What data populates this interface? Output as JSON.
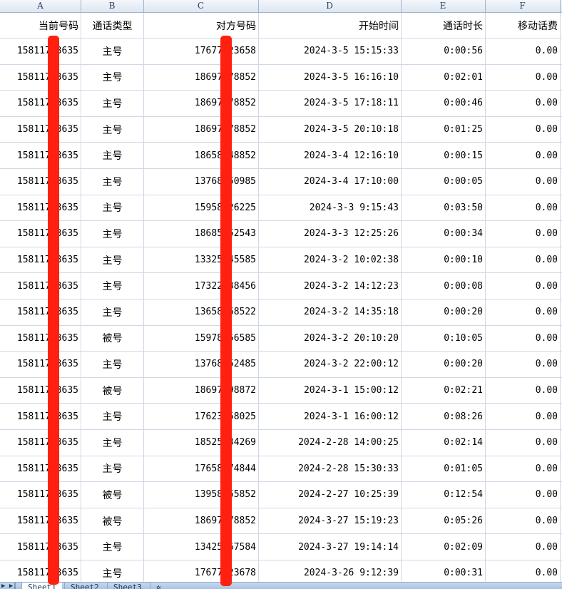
{
  "columns": [
    "A",
    "B",
    "C",
    "D",
    "E",
    "F"
  ],
  "headers": [
    "当前号码",
    "通话类型",
    "对方号码",
    "开始时间",
    "通话时长",
    "移动话费"
  ],
  "rows": [
    [
      "15811753635",
      "主号",
      "17677123658",
      "2024-3-5 15:15:33",
      "0:00:56",
      "0.00"
    ],
    [
      "15811753635",
      "主号",
      "18697378852",
      "2024-3-5 16:16:10",
      "0:02:01",
      "0.00"
    ],
    [
      "15811753635",
      "主号",
      "18697378852",
      "2024-3-5 17:18:11",
      "0:00:46",
      "0.00"
    ],
    [
      "15811753635",
      "主号",
      "18697378852",
      "2024-3-5 20:10:18",
      "0:01:25",
      "0.00"
    ],
    [
      "15811753635",
      "主号",
      "18658548852",
      "2024-3-4 12:16:10",
      "0:00:15",
      "0.00"
    ],
    [
      "15811753635",
      "主号",
      "13768250985",
      "2024-3-4 17:10:00",
      "0:00:05",
      "0.00"
    ],
    [
      "15811753635",
      "主号",
      "15958426225",
      "2024-3-3 9:15:43",
      "0:03:50",
      "0.00"
    ],
    [
      "15811753635",
      "主号",
      "18685552543",
      "2024-3-3 12:25:26",
      "0:00:34",
      "0.00"
    ],
    [
      "15811753635",
      "主号",
      "13325545585",
      "2024-3-2 10:02:38",
      "0:00:10",
      "0.00"
    ],
    [
      "15811753635",
      "主号",
      "17322538456",
      "2024-3-2 14:12:23",
      "0:00:08",
      "0.00"
    ],
    [
      "15811753635",
      "主号",
      "13658568522",
      "2024-3-2 14:35:18",
      "0:00:20",
      "0.00"
    ],
    [
      "15811753635",
      "被号",
      "15978156585",
      "2024-3-2 20:10:20",
      "0:10:05",
      "0.00"
    ],
    [
      "15811753635",
      "主号",
      "13768252485",
      "2024-3-2 22:00:12",
      "0:00:20",
      "0.00"
    ],
    [
      "15811753635",
      "被号",
      "18697598872",
      "2024-3-1 15:00:12",
      "0:02:21",
      "0.00"
    ],
    [
      "15811753635",
      "主号",
      "17623558025",
      "2024-3-1 16:00:12",
      "0:08:26",
      "0.00"
    ],
    [
      "15811753635",
      "主号",
      "18525534269",
      "2024-2-28 14:00:25",
      "0:02:14",
      "0.00"
    ],
    [
      "15811753635",
      "主号",
      "17658474844",
      "2024-2-28 15:30:33",
      "0:01:05",
      "0.00"
    ],
    [
      "15811753635",
      "被号",
      "13958265852",
      "2024-2-27 10:25:39",
      "0:12:54",
      "0.00"
    ],
    [
      "15811753635",
      "被号",
      "18697378852",
      "2024-3-27 15:19:23",
      "0:05:26",
      "0.00"
    ],
    [
      "15811753635",
      "主号",
      "13425567584",
      "2024-3-27 19:14:14",
      "0:02:09",
      "0.00"
    ],
    [
      "15811753635",
      "主号",
      "17677123678",
      "2024-3-26 9:12:39",
      "0:00:31",
      "0.00"
    ]
  ],
  "sheet_tabs": [
    "Sheet1",
    "Sheet2",
    "Sheet3"
  ],
  "active_tab": "Sheet1",
  "redaction_color": "#ff2010"
}
